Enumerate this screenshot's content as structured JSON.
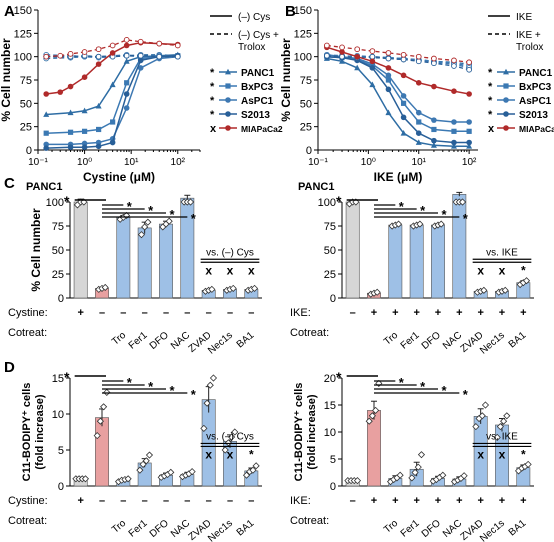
{
  "chart_data": [
    {
      "panel": "A",
      "type": "line",
      "ylabel": "% Cell number",
      "xlabel": "Cystine (μM)",
      "xscale": "log",
      "xlim": [
        0.1,
        300
      ],
      "ylim": [
        0,
        150
      ],
      "yticks": [
        "0",
        "25",
        "50",
        "75",
        "100",
        "125",
        "150"
      ],
      "xticks": [
        "10⁻¹",
        "10⁰",
        "10¹",
        "10²"
      ],
      "line_legend": [
        "(–) Cys",
        "(–) Cys + Trolox"
      ],
      "series": [
        {
          "name": "PANC1",
          "color": "#2e6da4",
          "marker": "^",
          "mark": "*",
          "x": [
            0.15,
            0.5,
            1,
            2,
            4,
            8,
            16,
            40,
            100
          ],
          "y": [
            38,
            40,
            42,
            47,
            70,
            95,
            100,
            101,
            102
          ],
          "trolox_y": [
            98,
            99,
            100,
            100,
            101,
            101,
            102,
            102,
            101
          ]
        },
        {
          "name": "BxPC3",
          "color": "#3b79b3",
          "marker": "s",
          "mark": "*",
          "x": [
            0.15,
            0.5,
            1,
            2,
            4,
            8,
            16,
            40,
            100
          ],
          "y": [
            18,
            19,
            20,
            22,
            30,
            72,
            98,
            100,
            101
          ],
          "trolox_y": [
            100,
            101,
            100,
            99,
            100,
            101,
            100,
            101,
            100
          ]
        },
        {
          "name": "AsPC1",
          "color": "#3d78b2",
          "marker": "o",
          "mark": "*",
          "x": [
            0.15,
            0.5,
            1,
            2,
            4,
            8,
            16,
            40,
            100
          ],
          "y": [
            6,
            6,
            7,
            8,
            12,
            45,
            88,
            98,
            100
          ],
          "trolox_y": [
            102,
            101,
            100,
            100,
            101,
            102,
            100,
            101,
            100
          ]
        },
        {
          "name": "S2013",
          "color": "#285f98",
          "marker": "o",
          "mark": "*",
          "x": [
            0.15,
            0.5,
            1,
            2,
            4,
            8,
            16,
            40,
            100
          ],
          "y": [
            2,
            3,
            3,
            4,
            8,
            60,
            96,
            100,
            101
          ],
          "trolox_y": [
            100,
            100,
            101,
            100,
            100,
            101,
            101,
            100,
            100
          ]
        },
        {
          "name": "MIAPaCa2",
          "color": "#b02a2a",
          "marker": "o",
          "mark": "x",
          "x": [
            0.15,
            0.3,
            0.5,
            1,
            2,
            4,
            8,
            16,
            40,
            100
          ],
          "y": [
            60,
            62,
            68,
            78,
            92,
            104,
            112,
            115,
            114,
            113
          ],
          "trolox_y": [
            100,
            101,
            103,
            105,
            108,
            112,
            118,
            116,
            114,
            112
          ]
        }
      ]
    },
    {
      "panel": "B",
      "type": "line",
      "ylabel": "% Cell number",
      "xlabel": "IKE (μM)",
      "xscale": "log",
      "xlim": [
        0.1,
        150
      ],
      "ylim": [
        0,
        150
      ],
      "yticks": [
        "0",
        "25",
        "50",
        "75",
        "100",
        "125",
        "150"
      ],
      "xticks": [
        "10⁻¹",
        "10⁰",
        "10¹",
        "10²"
      ],
      "line_legend": [
        "IKE",
        "IKE + Trolox"
      ],
      "series": [
        {
          "name": "PANC1",
          "color": "#2e6da4",
          "marker": "^",
          "mark": "*",
          "x": [
            0.15,
            0.3,
            0.6,
            1.2,
            2.5,
            5,
            10,
            20,
            50,
            100
          ],
          "y": [
            98,
            95,
            88,
            70,
            40,
            18,
            8,
            5,
            4,
            4
          ],
          "trolox_y": [
            100,
            101,
            100,
            99,
            98,
            97,
            96,
            95,
            94,
            92
          ]
        },
        {
          "name": "BxPC3",
          "color": "#3b79b3",
          "marker": "s",
          "mark": "*",
          "x": [
            0.15,
            0.3,
            0.6,
            1.2,
            2.5,
            5,
            10,
            20,
            50,
            100
          ],
          "y": [
            100,
            99,
            97,
            90,
            75,
            50,
            30,
            22,
            20,
            20
          ],
          "trolox_y": [
            101,
            100,
            101,
            100,
            99,
            98,
            97,
            95,
            93,
            90
          ]
        },
        {
          "name": "AsPC1",
          "color": "#3d78b2",
          "marker": "o",
          "mark": "*",
          "x": [
            0.15,
            0.3,
            0.6,
            1.2,
            2.5,
            5,
            10,
            20,
            50,
            100
          ],
          "y": [
            102,
            100,
            98,
            92,
            80,
            58,
            40,
            32,
            30,
            30
          ],
          "trolox_y": [
            102,
            101,
            100,
            100,
            99,
            98,
            96,
            94,
            92,
            88
          ]
        },
        {
          "name": "S2013",
          "color": "#285f98",
          "marker": "o",
          "mark": "*",
          "x": [
            0.15,
            0.3,
            0.6,
            1.2,
            2.5,
            5,
            10,
            20,
            50,
            100
          ],
          "y": [
            100,
            99,
            96,
            88,
            65,
            35,
            18,
            10,
            8,
            8
          ],
          "trolox_y": [
            101,
            100,
            99,
            100,
            98,
            97,
            95,
            93,
            90,
            86
          ]
        },
        {
          "name": "MIAPaCa2",
          "color": "#b02a2a",
          "marker": "o",
          "mark": "x",
          "x": [
            0.15,
            0.3,
            0.6,
            1.2,
            2.5,
            5,
            10,
            20,
            50,
            100
          ],
          "y": [
            110,
            105,
            100,
            95,
            88,
            80,
            72,
            68,
            63,
            60
          ],
          "trolox_y": [
            112,
            110,
            108,
            106,
            104,
            102,
            100,
            98,
            96,
            94
          ]
        }
      ]
    },
    {
      "panel": "C",
      "type": "bar",
      "title": "PANC1",
      "ylabel": "% Cell number",
      "ylim": [
        0,
        100
      ],
      "yticks": [
        "0",
        "25",
        "50",
        "75",
        "100"
      ],
      "condition_label": "Cystine:",
      "cotreat_label": "Cotreat:",
      "condition_marks": [
        "+",
        "–",
        "–",
        "–",
        "–",
        "–",
        "–",
        "–",
        "–"
      ],
      "categories": [
        "",
        "",
        "Tro",
        "Fer1",
        "DFO",
        "NAC",
        "ZVAD",
        "Nec1s",
        "BA1"
      ],
      "values": [
        100,
        10,
        84,
        73,
        77,
        104,
        8,
        9,
        9
      ],
      "errors": [
        3,
        1,
        2,
        6,
        3,
        3,
        1,
        1,
        1
      ],
      "points": [
        [
          97,
          100,
          103
        ],
        [
          9,
          10,
          11
        ],
        [
          82,
          84,
          86
        ],
        [
          66,
          74,
          79
        ],
        [
          74,
          77,
          80
        ],
        [
          101,
          104,
          107
        ],
        [
          7,
          8,
          9
        ],
        [
          8,
          9,
          10
        ],
        [
          8,
          9,
          10
        ]
      ],
      "colors": [
        "#d6d6d6",
        "#e8a0a0",
        "#9ec0e6",
        "#9ec0e6",
        "#9ec0e6",
        "#9ec0e6",
        "#9ec0e6",
        "#9ec0e6",
        "#9ec0e6"
      ],
      "significance_main": [
        "*",
        "*",
        "*",
        "*",
        "*"
      ],
      "vs_label": "vs. (–) Cys",
      "vs_marks": [
        "x",
        "x",
        "x"
      ]
    },
    {
      "panel": "C2",
      "type": "bar",
      "title": "PANC1",
      "ylabel": "",
      "ylim": [
        0,
        100
      ],
      "yticks": [
        "0",
        "25",
        "50",
        "75",
        "100"
      ],
      "condition_label": "IKE:",
      "cotreat_label": "Cotreat:",
      "condition_marks": [
        "–",
        "+",
        "+",
        "+",
        "+",
        "+",
        "+",
        "+",
        "+"
      ],
      "categories": [
        "",
        "",
        "Tro",
        "Fer1",
        "DFO",
        "NAC",
        "ZVAD",
        "Nec1s",
        "BA1"
      ],
      "values": [
        100,
        5,
        76,
        76,
        76,
        108,
        7,
        7,
        16
      ],
      "errors": [
        2,
        1,
        1,
        1,
        1,
        2,
        1,
        1,
        2
      ],
      "points": [
        [
          98,
          100,
          102
        ],
        [
          4,
          5,
          6
        ],
        [
          75,
          76,
          77
        ],
        [
          75,
          76,
          77
        ],
        [
          75,
          76,
          77
        ],
        [
          106,
          108,
          110
        ],
        [
          6,
          7,
          8
        ],
        [
          6,
          7,
          8
        ],
        [
          14,
          16,
          18
        ]
      ],
      "colors": [
        "#d6d6d6",
        "#e8a0a0",
        "#9ec0e6",
        "#9ec0e6",
        "#9ec0e6",
        "#9ec0e6",
        "#9ec0e6",
        "#9ec0e6",
        "#9ec0e6"
      ],
      "significance_main": [
        "*",
        "*",
        "*",
        "*",
        "*"
      ],
      "vs_label": "vs. IKE",
      "vs_marks": [
        "x",
        "x",
        "*"
      ]
    },
    {
      "panel": "D",
      "type": "bar",
      "ylabel": "C11-BODIPY⁺ cells (fold increase)",
      "ylim": [
        0,
        15
      ],
      "yticks": [
        "0",
        "5",
        "10",
        "15"
      ],
      "condition_label": "Cystine:",
      "cotreat_label": "Cotreat:",
      "condition_marks": [
        "+",
        "–",
        "–",
        "–",
        "–",
        "–",
        "–",
        "–",
        "–"
      ],
      "categories": [
        "",
        "",
        "Tro",
        "Fer1",
        "DFO",
        "NAC",
        "ZVAD",
        "Nec1s",
        "BA1"
      ],
      "values": [
        1,
        9.5,
        0.8,
        3.2,
        1.5,
        1.6,
        12,
        6.2,
        2.1
      ],
      "errors": [
        0.1,
        1.2,
        0.2,
        0.6,
        0.3,
        0.3,
        1.8,
        0.9,
        0.4
      ],
      "points": [
        [
          1,
          1,
          1,
          1
        ],
        [
          7,
          9,
          11,
          13
        ],
        [
          0.6,
          0.8,
          0.9,
          1
        ],
        [
          2.2,
          3,
          3.5,
          4.3
        ],
        [
          1.2,
          1.4,
          1.6,
          1.9
        ],
        [
          1.3,
          1.5,
          1.7,
          2
        ],
        [
          8,
          11.5,
          14,
          15
        ],
        [
          5,
          6,
          6.8,
          7.5
        ],
        [
          1.5,
          2,
          2.2,
          2.8
        ]
      ],
      "colors": [
        "#d6d6d6",
        "#e8a0a0",
        "#9ec0e6",
        "#9ec0e6",
        "#9ec0e6",
        "#9ec0e6",
        "#9ec0e6",
        "#9ec0e6",
        "#9ec0e6"
      ],
      "significance_main": [
        "*",
        "*",
        "*",
        "*",
        "*"
      ],
      "vs_label": "vs. (–) Cys",
      "vs_marks": [
        "x",
        "x",
        "*"
      ]
    },
    {
      "panel": "D2",
      "type": "bar",
      "ylabel": "C11-BODIPY⁺ cells (fold increase)",
      "ylim": [
        0,
        20
      ],
      "yticks": [
        "0",
        "5",
        "10",
        "15",
        "20"
      ],
      "condition_label": "IKE:",
      "cotreat_label": "Cotreat:",
      "condition_marks": [
        "–",
        "+",
        "+",
        "+",
        "+",
        "+",
        "+",
        "+",
        "+"
      ],
      "categories": [
        "",
        "",
        "Tro",
        "Fer1",
        "DFO",
        "NAC",
        "ZVAD",
        "Nec1s",
        "BA1"
      ],
      "values": [
        1,
        14,
        1.4,
        3.1,
        1.4,
        1.3,
        12.9,
        11.3,
        3.4
      ],
      "errors": [
        0.1,
        1.7,
        0.5,
        1.3,
        0.4,
        0.4,
        1.4,
        1.2,
        0.5
      ],
      "points": [
        [
          1,
          1,
          1,
          1
        ],
        [
          12,
          13,
          14,
          19
        ],
        [
          0.8,
          1.2,
          1.5,
          2
        ],
        [
          1.5,
          2.5,
          3.5,
          5.8
        ],
        [
          0.9,
          1.2,
          1.6,
          2
        ],
        [
          0.8,
          1.1,
          1.4,
          1.9
        ],
        [
          11,
          12.5,
          13,
          15
        ],
        [
          9,
          11,
          12,
          13
        ],
        [
          2.8,
          3.3,
          3.6,
          4
        ]
      ],
      "colors": [
        "#d6d6d6",
        "#e8a0a0",
        "#9ec0e6",
        "#9ec0e6",
        "#9ec0e6",
        "#9ec0e6",
        "#9ec0e6",
        "#9ec0e6",
        "#9ec0e6"
      ],
      "significance_main": [
        "*",
        "*",
        "*",
        "*",
        "*"
      ],
      "vs_label": "vs. IKE",
      "vs_marks": [
        "x",
        "x",
        "*"
      ]
    }
  ],
  "panel_letters": [
    "A",
    "B",
    "C",
    "D"
  ],
  "colors": {
    "bar_edge": "#444444",
    "line_solid": "#000000",
    "line_dash": "#000000"
  }
}
